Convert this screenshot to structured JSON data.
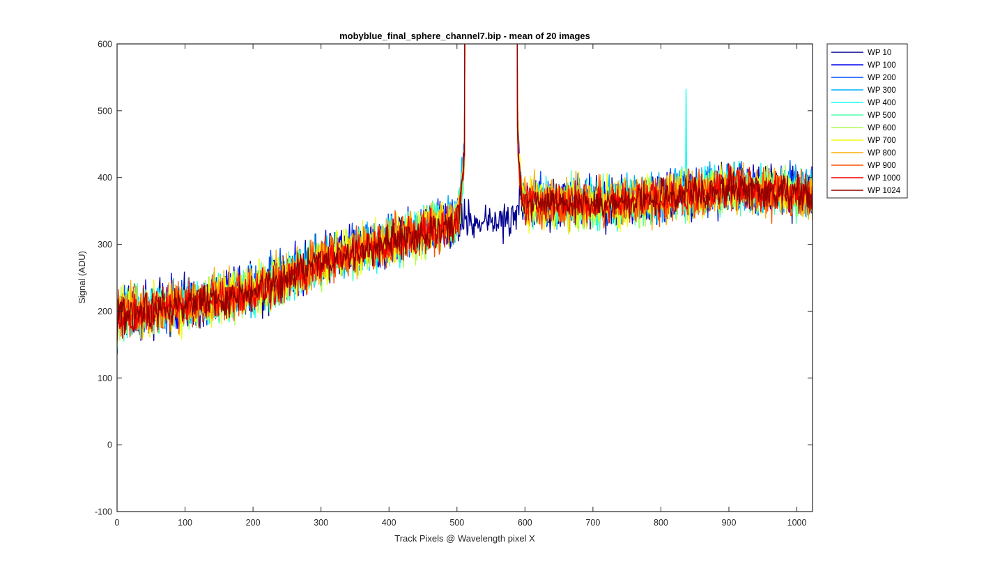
{
  "chart_data": {
    "type": "line",
    "title": "mobyblue_final_sphere_channel7.bip - mean of 20 images",
    "xlabel": "Track Pixels @ Wavelength pixel X",
    "ylabel": "Signal (ADU)",
    "xlim": [
      0,
      1023
    ],
    "ylim": [
      -100,
      600
    ],
    "xticks": [
      0,
      100,
      200,
      300,
      400,
      500,
      600,
      700,
      800,
      900,
      1000
    ],
    "yticks": [
      -100,
      0,
      100,
      200,
      300,
      400,
      500,
      600
    ],
    "grid": false,
    "legend_position": "outside-top-right",
    "peak_region": {
      "start": 512,
      "end": 588,
      "saturated_value": 600
    },
    "baseline_profile": {
      "x": [
        0,
        100,
        200,
        300,
        400,
        500,
        600,
        700,
        800,
        900,
        1023
      ],
      "y": [
        195,
        210,
        230,
        275,
        305,
        335,
        365,
        360,
        370,
        385,
        375
      ]
    },
    "series": [
      {
        "name": "WP 10",
        "color": "#00008f",
        "noise": 22,
        "offset": 0,
        "in_peak_value": 335,
        "spike": null
      },
      {
        "name": "WP 100",
        "color": "#0000ef",
        "noise": 22,
        "offset": 2,
        "in_peak_value": null,
        "spike": null
      },
      {
        "name": "WP 200",
        "color": "#0050ff",
        "noise": 22,
        "offset": 1,
        "in_peak_value": null,
        "spike": null
      },
      {
        "name": "WP 300",
        "color": "#00afff",
        "noise": 22,
        "offset": 3,
        "in_peak_value": null,
        "spike": null
      },
      {
        "name": "WP 400",
        "color": "#10ffef",
        "noise": 22,
        "offset": 0,
        "in_peak_value": null,
        "spike": {
          "x": 837,
          "y": 532
        }
      },
      {
        "name": "WP 500",
        "color": "#50ffaf",
        "noise": 22,
        "offset": -2,
        "in_peak_value": null,
        "spike": null
      },
      {
        "name": "WP 600",
        "color": "#afff50",
        "noise": 22,
        "offset": -3,
        "in_peak_value": null,
        "spike": null
      },
      {
        "name": "WP 700",
        "color": "#efff10",
        "noise": 22,
        "offset": -1,
        "in_peak_value": null,
        "spike": null
      },
      {
        "name": "WP 800",
        "color": "#ffaf00",
        "noise": 22,
        "offset": 0,
        "in_peak_value": null,
        "spike": null
      },
      {
        "name": "WP 900",
        "color": "#ff5000",
        "noise": 22,
        "offset": -2,
        "in_peak_value": null,
        "spike": null
      },
      {
        "name": "WP 1000",
        "color": "#ef0000",
        "noise": 18,
        "offset": -1,
        "in_peak_value": null,
        "spike": null
      },
      {
        "name": "WP 1024",
        "color": "#8f0000",
        "noise": 16,
        "offset": -2,
        "in_peak_value": null,
        "spike": null
      }
    ]
  }
}
